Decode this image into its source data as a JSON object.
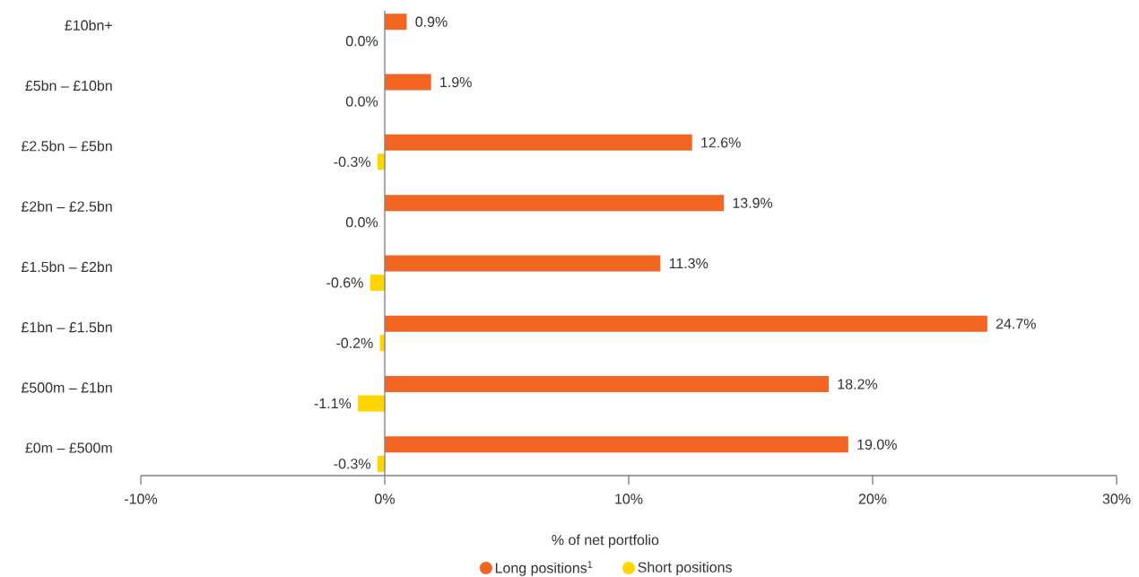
{
  "chart_data": {
    "type": "bar",
    "orientation": "horizontal",
    "xlabel": "% of net portfolio",
    "categories": [
      "£10bn+",
      "£5bn – £10bn",
      "£2.5bn – £5bn",
      "£2bn – £2.5bn",
      "£1.5bn – £2bn",
      "£1bn – £1.5bn",
      "£500m – £1bn",
      "£0m – £500m"
    ],
    "series": [
      {
        "name": "Long positions$^{1}$",
        "color": "#f26522",
        "values": [
          0.9,
          1.9,
          12.6,
          13.9,
          11.3,
          24.7,
          18.2,
          19.0
        ],
        "value_labels": [
          "0.9%",
          "1.9%",
          "12.6%",
          "13.9%",
          "11.3%",
          "24.7%",
          "18.2%",
          "19.0%"
        ]
      },
      {
        "name": "Short positions",
        "color": "#ffd500",
        "values": [
          0.0,
          0.0,
          -0.3,
          0.0,
          -0.6,
          -0.2,
          -1.1,
          -0.3
        ],
        "value_labels": [
          "0.0%",
          "0.0%",
          "-0.3%",
          "0.0%",
          "-0.6%",
          "-0.2%",
          "-1.1%",
          "-0.3%"
        ]
      }
    ],
    "xlim": [
      -10,
      30
    ],
    "xticks": [
      {
        "value": -10,
        "label": "-10%"
      },
      {
        "value": 0,
        "label": "0%"
      },
      {
        "value": 10,
        "label": "10%"
      },
      {
        "value": 20,
        "label": "20%"
      },
      {
        "value": 30,
        "label": "30%"
      }
    ],
    "legend": "bottom"
  }
}
